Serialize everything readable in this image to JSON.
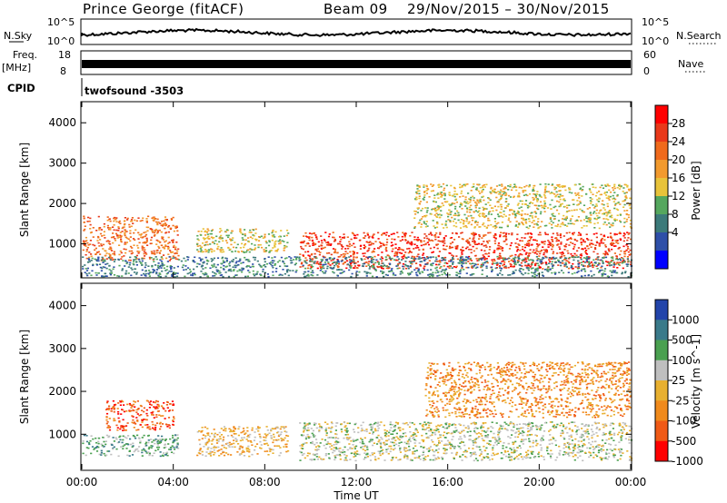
{
  "header": {
    "station": "Prince George (fitACF)",
    "beam": "Beam 09",
    "dates": "29/Nov/2015 – 30/Nov/2015"
  },
  "panels": {
    "nsky_label": "N.Sky",
    "nsky_ticks": [
      "10^5",
      "10^0"
    ],
    "nsearch_label": "N.Search",
    "nsearch_ticks": [
      "10^5",
      "10^0"
    ],
    "freq_label": "Freq.",
    "freq_unit": "[MHz]",
    "freq_ticks": [
      "18",
      "8"
    ],
    "nave_label": "Nave",
    "nave_ticks": [
      "60",
      "0"
    ],
    "cpid_label": "CPID",
    "cpid_value": "twofsound -3503"
  },
  "chart_data": [
    {
      "type": "heatmap",
      "name": "power",
      "ylabel": "Slant Range [km]",
      "yticks": [
        "4000",
        "3000",
        "2000",
        "1000"
      ],
      "ylim": [
        180,
        4500
      ],
      "colorbar_label": "Power [dB]",
      "colorbar_ticks": [
        "28",
        "24",
        "20",
        "16",
        "12",
        "8",
        "4"
      ],
      "colors": [
        "#0000ff",
        "#2e4fa8",
        "#3c7a7a",
        "#55a75e",
        "#e8c33a",
        "#f29a2e",
        "#f06a1c",
        "#e9391a",
        "#ff0000"
      ],
      "echo_regions": [
        {
          "t0": 0.0,
          "t1": 4.2,
          "r0": 600,
          "r1": 1700,
          "level": 0.7
        },
        {
          "t0": 5.0,
          "t1": 9.0,
          "r0": 800,
          "r1": 1400,
          "level": 0.55
        },
        {
          "t0": 9.5,
          "t1": 24.0,
          "r0": 400,
          "r1": 1300,
          "level": 0.92
        },
        {
          "t0": 14.5,
          "t1": 24.0,
          "r0": 1400,
          "r1": 2500,
          "level": 0.55
        },
        {
          "t0": 0.0,
          "t1": 24.0,
          "r0": 200,
          "r1": 700,
          "level": 0.3
        }
      ]
    },
    {
      "type": "heatmap",
      "name": "velocity",
      "ylabel": "Slant Range [km]",
      "yticks": [
        "4000",
        "3000",
        "2000",
        "1000"
      ],
      "ylim": [
        180,
        4500
      ],
      "colorbar_label": "Velocity [m s^-1]",
      "colorbar_ticks": [
        "1000",
        "500",
        "100",
        "25",
        "-25",
        "-100",
        "-500",
        "-1000"
      ],
      "colors": [
        "#2244aa",
        "#3a7a8a",
        "#4aa050",
        "#bfbfbf",
        "#e8b030",
        "#f08a1c",
        "#f05a16",
        "#ff0000"
      ],
      "xlabel": "Time UT",
      "xticks": [
        "00:00",
        "04:00",
        "08:00",
        "12:00",
        "16:00",
        "20:00",
        "00:00"
      ],
      "xlim": [
        0,
        24
      ],
      "echo_regions": [
        {
          "t0": 0.0,
          "t1": 4.2,
          "r0": 500,
          "r1": 1000,
          "vel": "100"
        },
        {
          "t0": 1.0,
          "t1": 4.0,
          "r0": 1100,
          "r1": 1800,
          "vel": "-500"
        },
        {
          "t0": 5.0,
          "t1": 9.0,
          "r0": 500,
          "r1": 1200,
          "vel": "-25"
        },
        {
          "t0": 9.5,
          "t1": 24.0,
          "r0": 400,
          "r1": 1300,
          "vel": "25"
        },
        {
          "t0": 15.0,
          "t1": 24.0,
          "r0": 1400,
          "r1": 2700,
          "vel": "-100"
        }
      ]
    }
  ]
}
